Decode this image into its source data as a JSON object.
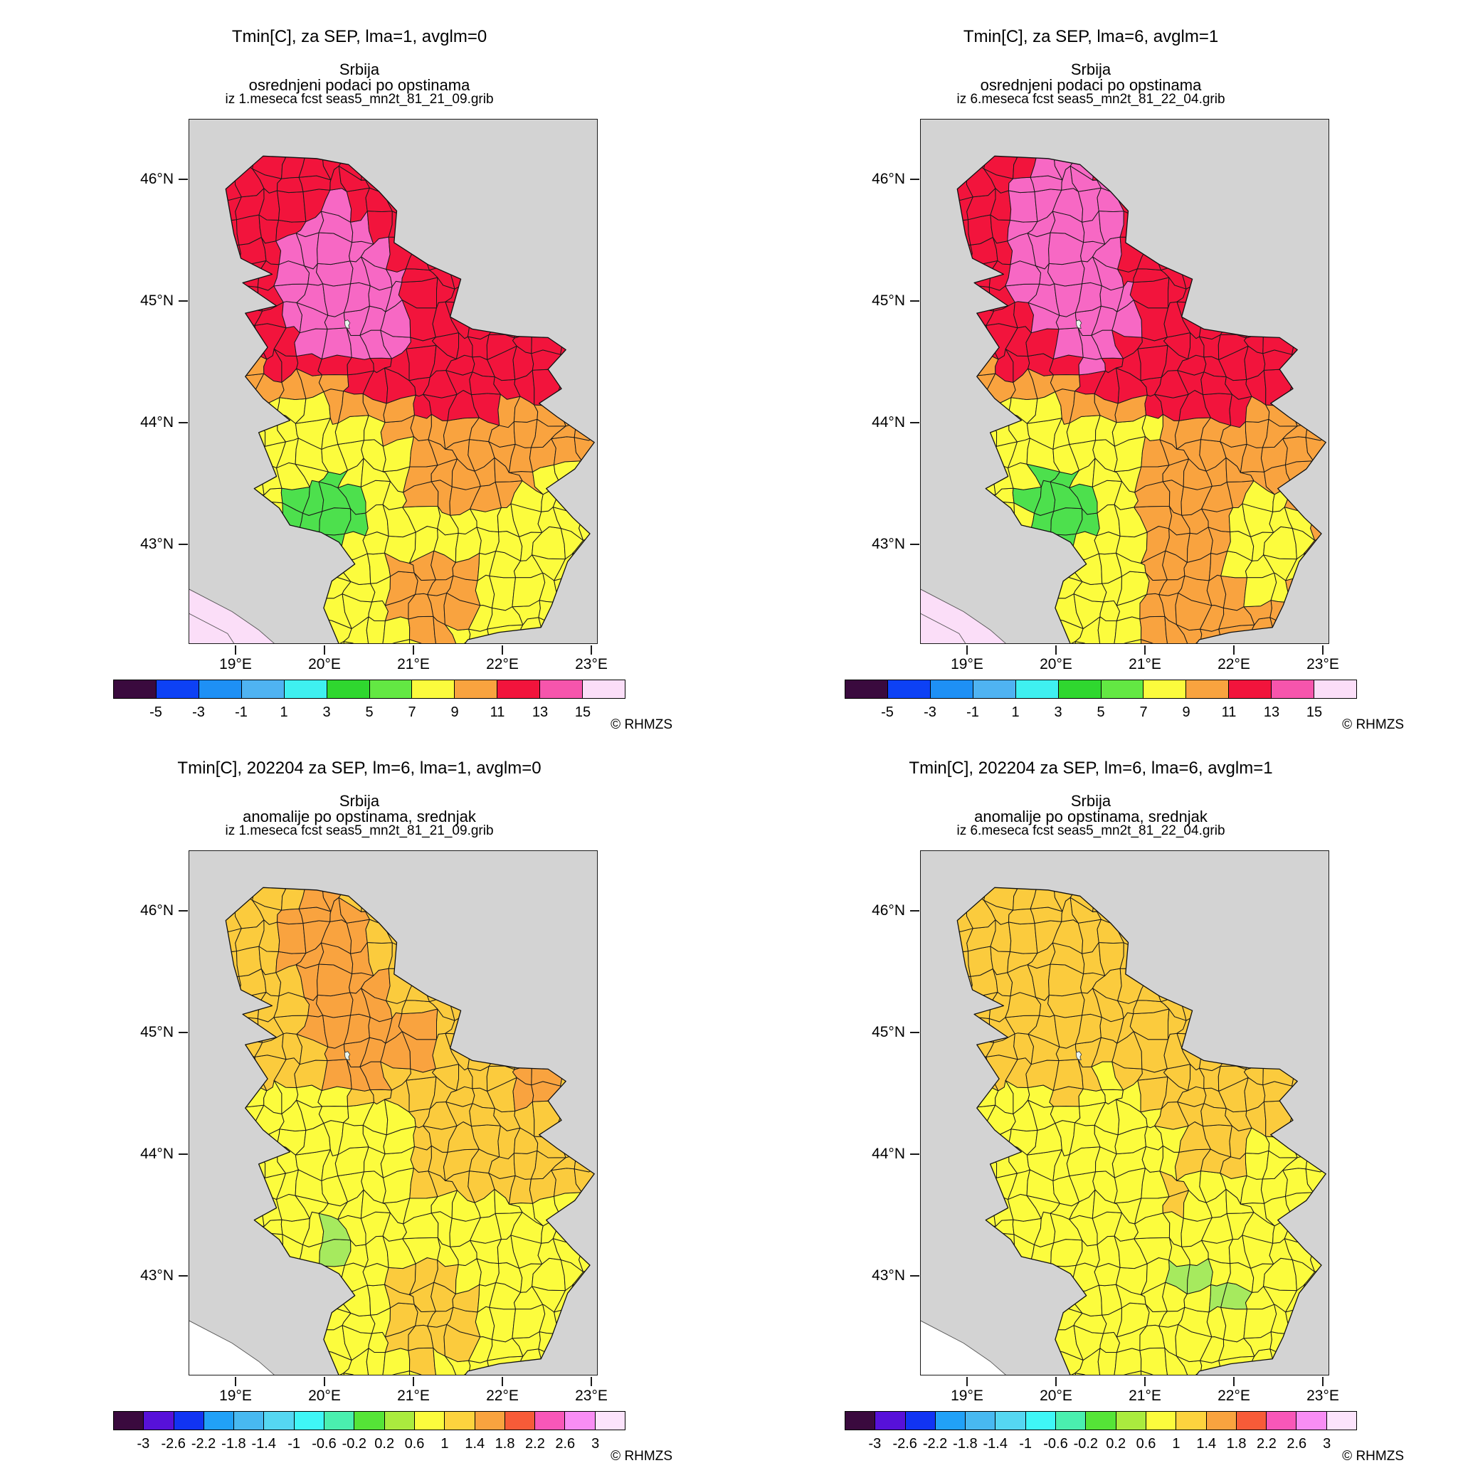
{
  "chart_data": {
    "type": "heatmap",
    "subtype": "choropleth map grid, 2x2 panels",
    "region": "Srbija (Serbia), data averaged per municipality (opstina)",
    "source_service": "RHMZS",
    "projection": {
      "lon_range": [
        18.47,
        23.05
      ],
      "lat_range": [
        42.19,
        46.49
      ]
    },
    "lat_tick_labels": [
      "46°N",
      "45°N",
      "44°N",
      "43°N"
    ],
    "lon_tick_labels": [
      "19°E",
      "20°E",
      "21°E",
      "22°E",
      "23°E"
    ],
    "colors": {
      "mapBg": "#D3D3D3",
      "red": "#F2143C",
      "pink": "#F768C4",
      "orange": "#F9A33F",
      "yellow": "#FCFC3D",
      "green": "#4DE04D",
      "gold": "#FBCB3D",
      "lightgreen": "#A6EA5E",
      "paleCorner": "#FBDEF8",
      "white": "#FFFFFF",
      "city": "#EAF6EF"
    },
    "legends": {
      "top": {
        "ticks": [
          "-5",
          "-3",
          "-1",
          "1",
          "3",
          "5",
          "7",
          "9",
          "11",
          "13",
          "15"
        ],
        "colors": [
          "#3A0A3E",
          "#0D41F5",
          "#1E90F5",
          "#4FB3F2",
          "#3FF0F0",
          "#2FD72F",
          "#63E843",
          "#FBFB3D",
          "#F9A33F",
          "#F2143C",
          "#F655AC",
          "#FBDEF8"
        ]
      },
      "bottom": {
        "ticks": [
          "-3",
          "-2.6",
          "-2.2",
          "-1.8",
          "-1.4",
          "-1",
          "-0.6",
          "-0.2",
          "0.2",
          "0.6",
          "1",
          "1.4",
          "1.8",
          "2.2",
          "2.6",
          "3"
        ],
        "colors": [
          "#3A0A3E",
          "#5711D9",
          "#1134F3",
          "#21A1F7",
          "#48B9F1",
          "#55D7F2",
          "#3FF6F6",
          "#4AEFAF",
          "#55E437",
          "#AAEB3E",
          "#FBFB3D",
          "#FDD33E",
          "#F9A33F",
          "#F75B38",
          "#F857B8",
          "#F88DF4",
          "#FCE3FC"
        ]
      }
    },
    "geo": {
      "serbia": [
        [
          18.88,
          45.92
        ],
        [
          19.3,
          46.19
        ],
        [
          19.9,
          46.17
        ],
        [
          20.26,
          46.12
        ],
        [
          20.6,
          45.9
        ],
        [
          20.8,
          45.74
        ],
        [
          20.77,
          45.48
        ],
        [
          21.15,
          45.3
        ],
        [
          21.52,
          45.18
        ],
        [
          21.4,
          44.87
        ],
        [
          21.65,
          44.77
        ],
        [
          22.15,
          44.71
        ],
        [
          22.5,
          44.7
        ],
        [
          22.7,
          44.6
        ],
        [
          22.5,
          44.44
        ],
        [
          22.65,
          44.28
        ],
        [
          22.4,
          44.16
        ],
        [
          22.6,
          44.05
        ],
        [
          23.02,
          43.84
        ],
        [
          22.8,
          43.62
        ],
        [
          22.48,
          43.46
        ],
        [
          22.78,
          43.22
        ],
        [
          22.97,
          43.09
        ],
        [
          22.72,
          42.86
        ],
        [
          22.54,
          42.5
        ],
        [
          22.42,
          42.32
        ],
        [
          21.95,
          42.28
        ],
        [
          21.6,
          42.22
        ],
        [
          21.42,
          42.05
        ],
        [
          21.1,
          41.95
        ],
        [
          20.75,
          41.88
        ],
        [
          20.48,
          41.95
        ],
        [
          20.2,
          42.1
        ],
        [
          19.98,
          42.48
        ],
        [
          20.07,
          42.7
        ],
        [
          20.33,
          42.84
        ],
        [
          20.15,
          43.02
        ],
        [
          19.95,
          43.1
        ],
        [
          19.6,
          43.16
        ],
        [
          19.48,
          43.3
        ],
        [
          19.2,
          43.46
        ],
        [
          19.45,
          43.56
        ],
        [
          19.25,
          43.92
        ],
        [
          19.6,
          44.02
        ],
        [
          19.3,
          44.2
        ],
        [
          19.1,
          44.38
        ],
        [
          19.35,
          44.62
        ],
        [
          19.1,
          44.9
        ],
        [
          19.45,
          44.96
        ],
        [
          19.07,
          45.15
        ],
        [
          19.4,
          45.22
        ],
        [
          19.05,
          45.35
        ],
        [
          18.97,
          45.55
        ]
      ],
      "corner": [
        [
          18.4,
          42.66
        ],
        [
          18.95,
          42.45
        ],
        [
          19.25,
          42.3
        ],
        [
          19.5,
          42.14
        ],
        [
          19.52,
          42.08
        ],
        [
          18.4,
          42.08
        ]
      ],
      "corner_inner": [
        [
          18.4,
          42.46
        ],
        [
          18.9,
          42.27
        ],
        [
          19.05,
          42.1
        ]
      ],
      "city_belgrade": [
        [
          20.215,
          44.835
        ],
        [
          20.25,
          44.845
        ],
        [
          20.275,
          44.82
        ],
        [
          20.26,
          44.8
        ],
        [
          20.27,
          44.775
        ],
        [
          20.235,
          44.78
        ],
        [
          20.22,
          44.8
        ]
      ]
    },
    "grid": {
      "lon0": 18.3,
      "dlon": 0.24,
      "cols": 22,
      "lat0": 41.8,
      "dlat": 0.185,
      "rows": 27
    },
    "panels": [
      {
        "id": "mean-lma1",
        "title": "Tmin[C], za SEP, lma=1, avglm=0",
        "subtitle_lines": [
          "Srbija",
          "osrednjeni podaci po opstinama",
          "iz 1.meseca fcst seas5_mn2t_81_21_09.grib"
        ],
        "credit": "© RHMZS",
        "legend": "top",
        "corner_fill": "paleCorner",
        "corner_inner": true,
        "base": "yellow",
        "zones": [
          {
            "value": "13–15",
            "color": "pink",
            "type": "ellipses",
            "e": [
              [
                20.12,
                45.18,
                0.62,
                0.62
              ],
              [
                20.6,
                44.95,
                0.38,
                0.42
              ]
            ]
          },
          {
            "value": "11–13",
            "color": "red",
            "type": "north",
            "line": [
              [
                18.3,
                44.55
              ],
              [
                19.6,
                44.45
              ],
              [
                20.6,
                44.25
              ],
              [
                21.5,
                44.05
              ],
              [
                22.0,
                44.05
              ],
              [
                22.15,
                44.28
              ],
              [
                23.2,
                44.28
              ]
            ]
          },
          {
            "value": "5–7",
            "color": "green",
            "type": "ellipses",
            "e": [
              [
                20.02,
                43.26,
                0.42,
                0.3
              ]
            ]
          },
          {
            "value": "9–11",
            "color": "orange",
            "type": "ellipses",
            "e": [
              [
                21.22,
                42.6,
                0.48,
                0.38
              ]
            ]
          },
          {
            "value": "9–11",
            "color": "orange",
            "type": "north",
            "line": [
              [
                18.3,
                44.32
              ],
              [
                19.8,
                44.22
              ],
              [
                20.5,
                44.02
              ],
              [
                20.95,
                43.75
              ],
              [
                21.05,
                43.35
              ],
              [
                21.7,
                43.28
              ],
              [
                22.3,
                43.45
              ],
              [
                22.5,
                43.62
              ],
              [
                23.2,
                43.62
              ]
            ]
          },
          {
            "value": "7–9",
            "color": "yellow",
            "type": "all"
          }
        ]
      },
      {
        "id": "mean-lma6",
        "title": "Tmin[C], za SEP, lma=6, avglm=1",
        "subtitle_lines": [
          "Srbija",
          "osrednjeni podaci po opstinama",
          "iz 6.meseca fcst seas5_mn2t_81_22_04.grib"
        ],
        "credit": "© RHMZS",
        "legend": "top",
        "corner_fill": "paleCorner",
        "corner_inner": true,
        "base": "yellow",
        "zones": [
          {
            "value": "13–15",
            "color": "pink",
            "type": "ellipses",
            "e": [
              [
                20.08,
                45.48,
                0.66,
                0.8
              ],
              [
                20.4,
                44.88,
                0.42,
                0.45
              ]
            ]
          },
          {
            "value": "11–13",
            "color": "red",
            "type": "north",
            "line": [
              [
                18.3,
                44.55
              ],
              [
                19.6,
                44.45
              ],
              [
                20.6,
                44.25
              ],
              [
                21.4,
                44.02
              ],
              [
                22.0,
                44.02
              ],
              [
                22.15,
                44.26
              ],
              [
                23.2,
                44.26
              ]
            ]
          },
          {
            "value": "5–7",
            "color": "green",
            "type": "ellipses",
            "e": [
              [
                20.05,
                43.28,
                0.44,
                0.32
              ]
            ]
          },
          {
            "value": "7–9",
            "color": "yellow",
            "type": "ellipses",
            "e": [
              [
                22.38,
                43.05,
                0.52,
                0.45
              ]
            ]
          },
          {
            "value": "7–9",
            "color": "yellow",
            "type": "rect",
            "r": [
              20.4,
              42.95,
              20.98,
              43.5
            ]
          },
          {
            "value": "9–11",
            "color": "orange",
            "type": "rect",
            "r": [
              20.95,
              41.8,
              23.3,
              43.95
            ]
          },
          {
            "value": "9–11",
            "color": "orange",
            "type": "north",
            "line": [
              [
                18.3,
                44.32
              ],
              [
                19.8,
                44.22
              ],
              [
                20.5,
                44.0
              ],
              [
                23.2,
                43.9
              ]
            ]
          },
          {
            "value": "7–9",
            "color": "yellow",
            "type": "all"
          }
        ]
      },
      {
        "id": "anomaly-lma1",
        "title": "Tmin[C], 202204 za SEP, lm=6, lma=1, avglm=0",
        "subtitle_lines": [
          "Srbija",
          "anomalije po opstinama, srednjak",
          "iz 1.meseca fcst seas5_mn2t_81_21_09.grib"
        ],
        "credit": "© RHMZS",
        "legend": "bottom",
        "corner_fill": "white",
        "corner_inner": false,
        "base": "gold",
        "zones": [
          {
            "value": "1.4–1.8",
            "color": "orange",
            "type": "ellipses",
            "e": [
              [
                20.02,
                45.72,
                0.55,
                0.48
              ],
              [
                20.28,
                45.25,
                0.5,
                0.42
              ],
              [
                20.35,
                44.85,
                0.42,
                0.38
              ],
              [
                20.95,
                44.92,
                0.38,
                0.26
              ],
              [
                22.4,
                44.55,
                0.28,
                0.18
              ]
            ]
          },
          {
            "value": "0.2–0.6",
            "color": "lightgreen",
            "type": "ellipses",
            "e": [
              [
                20.15,
                43.26,
                0.22,
                0.17
              ]
            ]
          },
          {
            "value": "1–1.4",
            "color": "gold",
            "type": "ellipses",
            "e": [
              [
                21.15,
                42.72,
                0.52,
                0.48
              ]
            ]
          },
          {
            "value": "0.6–1",
            "color": "yellow",
            "type": "rect",
            "r": [
              18.3,
              43.25,
              20.35,
              44.55
            ]
          },
          {
            "value": "0.6–1",
            "color": "yellow",
            "type": "rect",
            "r": [
              20.35,
              43.55,
              21.05,
              44.4
            ]
          },
          {
            "value": "0.6–1",
            "color": "yellow",
            "type": "south",
            "line": [
              [
                18.3,
                43.62
              ],
              [
                23.2,
                43.62
              ]
            ]
          },
          {
            "value": "1–1.4",
            "color": "gold",
            "type": "all"
          }
        ]
      },
      {
        "id": "anomaly-lma6",
        "title": "Tmin[C], 202204 za SEP, lm=6, lma=6, avglm=1",
        "subtitle_lines": [
          "Srbija",
          "anomalije po opstinama, srednjak",
          "iz 6.meseca fcst seas5_mn2t_81_22_04.grib"
        ],
        "credit": "© RHMZS",
        "legend": "bottom",
        "corner_fill": "white",
        "corner_inner": false,
        "base": "yellow",
        "zones": [
          {
            "value": "0.2–0.6",
            "color": "lightgreen",
            "type": "ellipses",
            "e": [
              [
                21.5,
                43.0,
                0.15,
                0.12
              ],
              [
                21.85,
                42.8,
                0.22,
                0.17
              ]
            ]
          },
          {
            "value": "1–1.4",
            "color": "gold",
            "type": "north",
            "line": [
              [
                18.3,
                44.62
              ],
              [
                19.5,
                44.55
              ],
              [
                20.15,
                44.45
              ],
              [
                20.5,
                44.72
              ],
              [
                20.95,
                44.52
              ],
              [
                21.35,
                44.15
              ],
              [
                22.25,
                44.18
              ],
              [
                22.75,
                44.42
              ],
              [
                23.2,
                44.42
              ]
            ]
          },
          {
            "value": "1–1.4",
            "color": "gold",
            "type": "ellipses",
            "e": [
              [
                21.7,
                44.02,
                0.42,
                0.2
              ],
              [
                21.3,
                43.68,
                0.2,
                0.14
              ],
              [
                22.55,
                44.3,
                0.2,
                0.15
              ]
            ]
          },
          {
            "value": "0.6–1",
            "color": "yellow",
            "type": "all"
          }
        ]
      }
    ]
  }
}
